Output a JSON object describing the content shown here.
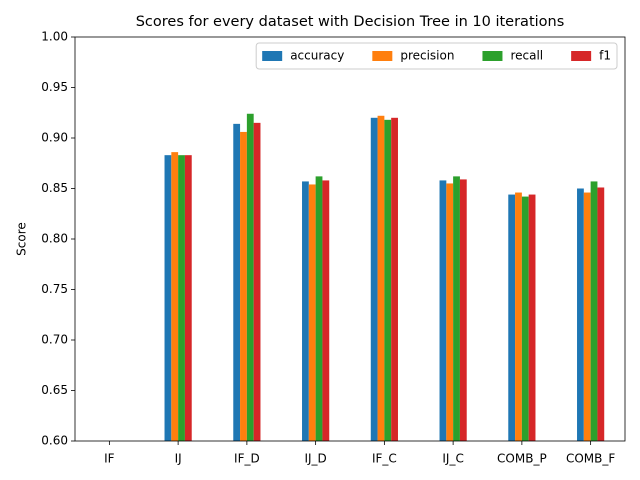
{
  "chart_data": {
    "type": "bar",
    "title": "Scores for every dataset with Decision Tree in 10 iterations",
    "y_label": "Score",
    "categories": [
      "IF",
      "IJ",
      "IF_D",
      "IJ_D",
      "IF_C",
      "IJ_C",
      "COMB_P",
      "COMB_F"
    ],
    "series": [
      {
        "name": "accuracy",
        "color": "#1f77b4",
        "values": [
          null,
          0.883,
          0.914,
          0.857,
          0.92,
          0.858,
          0.844,
          0.85
        ]
      },
      {
        "name": "precision",
        "color": "#ff7f0e",
        "values": [
          null,
          0.886,
          0.906,
          0.854,
          0.922,
          0.855,
          0.846,
          0.846
        ]
      },
      {
        "name": "recall",
        "color": "#2ca02c",
        "values": [
          null,
          0.883,
          0.924,
          0.862,
          0.918,
          0.862,
          0.842,
          0.857
        ]
      },
      {
        "name": "f1",
        "color": "#d62728",
        "values": [
          null,
          0.883,
          0.915,
          0.858,
          0.92,
          0.859,
          0.844,
          0.851
        ]
      }
    ],
    "ylim": [
      0.6,
      1.0
    ],
    "yticks": [
      {
        "value": 0.6,
        "label": "0.60"
      },
      0.65,
      {
        "value": 0.7,
        "label": "0.70"
      },
      0.75,
      {
        "value": 0.8,
        "label": "0.80"
      },
      0.85,
      {
        "value": 0.9,
        "label": "0.90"
      },
      0.95,
      {
        "value": 1.0,
        "label": "1.00"
      }
    ],
    "grid": false,
    "legend_position": "upper right"
  }
}
